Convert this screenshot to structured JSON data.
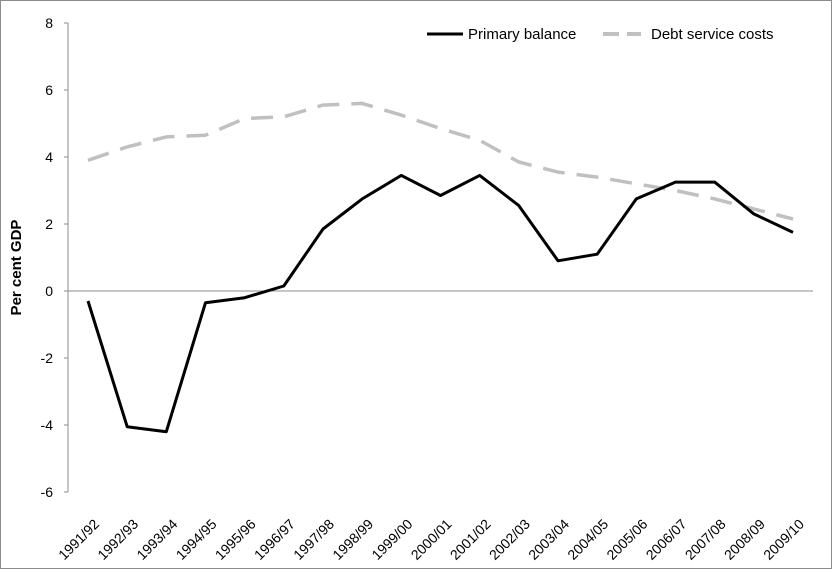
{
  "chart_data": {
    "type": "line",
    "title": "",
    "xlabel": "",
    "ylabel": "Per cent GDP",
    "ylim": [
      -6,
      8
    ],
    "yticks": [
      -6,
      -4,
      -2,
      0,
      2,
      4,
      6,
      8
    ],
    "grid": false,
    "legend_position": "top-right",
    "categories": [
      "1991/92",
      "1992/93",
      "1993/94",
      "1994/95",
      "1995/96",
      "1996/97",
      "1997/98",
      "1998/99",
      "1999/00",
      "2000/01",
      "2001/02",
      "2002/03",
      "2003/04",
      "2004/05",
      "2005/06",
      "2006/07",
      "2007/08",
      "2008/09",
      "2009/10"
    ],
    "series": [
      {
        "name": "Primary balance",
        "color": "#000000",
        "dash": "solid",
        "values": [
          -0.3,
          -4.05,
          -4.2,
          -0.35,
          -0.2,
          0.15,
          1.85,
          2.75,
          3.45,
          2.85,
          3.45,
          2.55,
          0.9,
          1.1,
          2.75,
          3.25,
          3.25,
          2.3,
          1.75
        ]
      },
      {
        "name": "Debt service costs",
        "color": "#c0c0c0",
        "dash": "dashed",
        "values": [
          3.9,
          4.3,
          4.6,
          4.65,
          5.15,
          5.2,
          5.55,
          5.6,
          5.25,
          4.85,
          4.5,
          3.85,
          3.55,
          3.4,
          3.2,
          3.0,
          2.75,
          2.45,
          2.15
        ]
      }
    ]
  }
}
